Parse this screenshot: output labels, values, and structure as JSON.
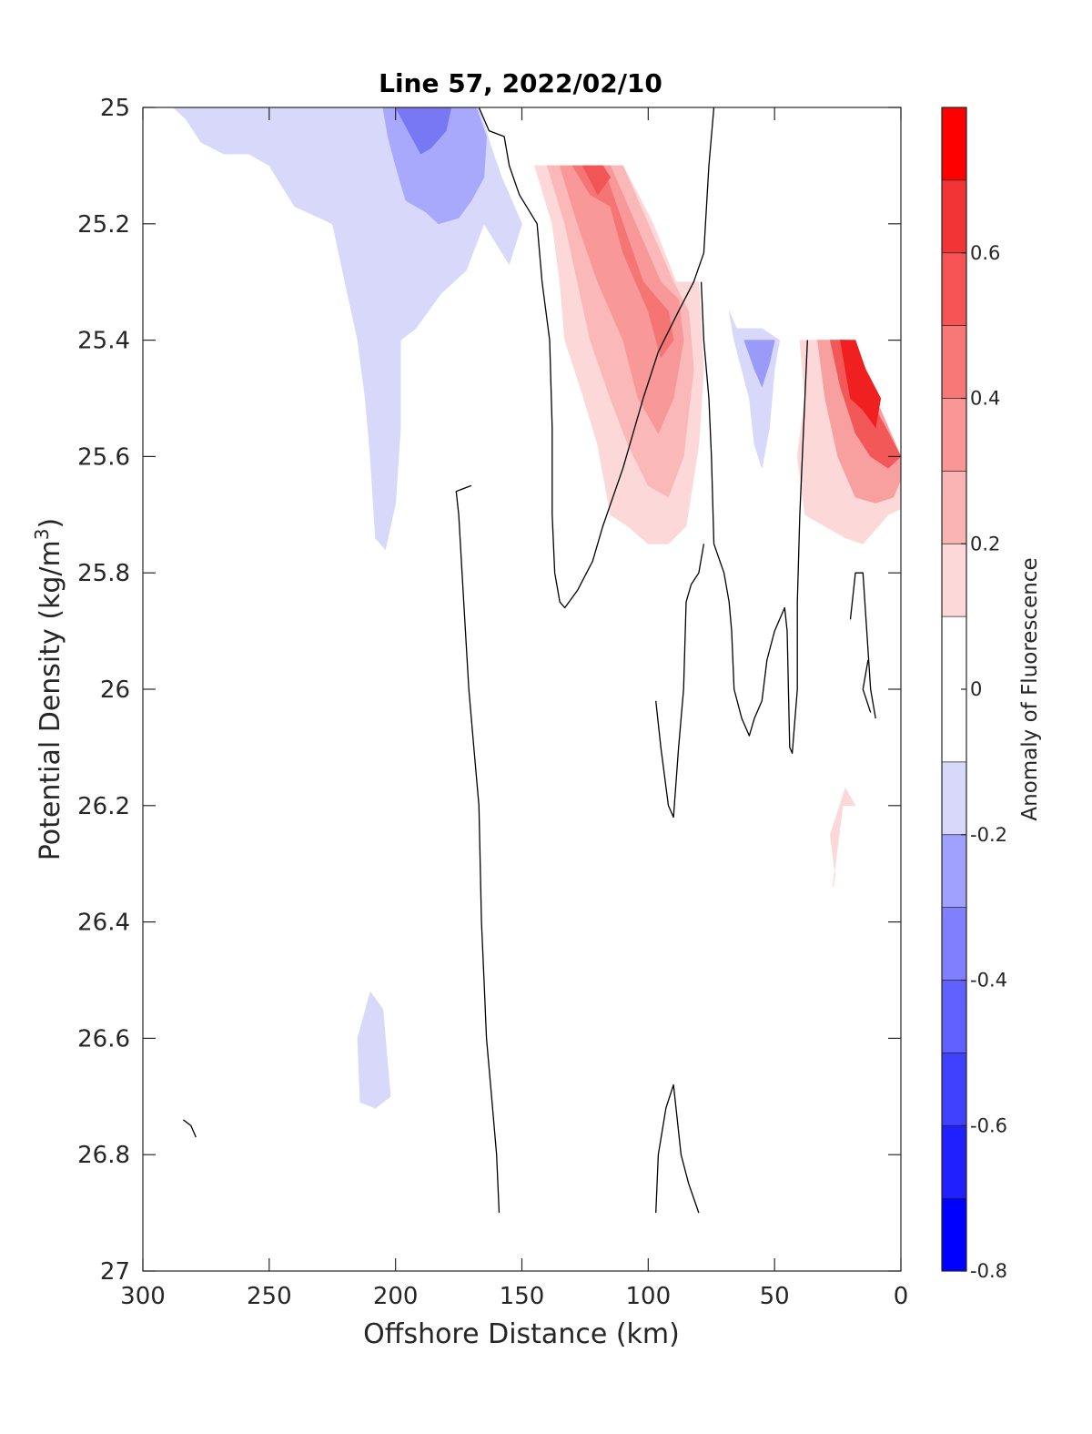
{
  "chart_data": {
    "type": "contour",
    "title": "Line 57, 2022/02/10",
    "xlabel": "Offshore Distance (km)",
    "ylabel": "Potential Density (kg/m",
    "ylabel_sup": "3",
    "ylabel_end": ")",
    "xlim": [
      300,
      0
    ],
    "ylim": [
      25,
      27
    ],
    "x_reversed": true,
    "y_reversed": true,
    "grid": false,
    "x_ticks": [
      300,
      250,
      200,
      150,
      100,
      50,
      0
    ],
    "x_tick_labels": [
      "300",
      "250",
      "200",
      "150",
      "100",
      "50",
      "0"
    ],
    "y_ticks": [
      25,
      25.2,
      25.4,
      25.6,
      25.8,
      26,
      26.2,
      26.4,
      26.6,
      26.8,
      27
    ],
    "y_tick_labels": [
      "25",
      "25.2",
      "25.4",
      "25.6",
      "25.8",
      "26",
      "26.2",
      "26.4",
      "26.6",
      "26.8",
      "27"
    ],
    "colorbar": {
      "label": "Anomaly of Fluorescence",
      "range": [
        -0.8,
        0.8
      ],
      "levels": [
        -0.8,
        -0.7,
        -0.6,
        -0.5,
        -0.4,
        -0.3,
        -0.2,
        -0.1,
        0.1,
        0.2,
        0.3,
        0.4,
        0.5,
        0.6,
        0.7,
        0.8
      ],
      "level_colors": [
        "#0000ff",
        "#2020ff",
        "#4040ff",
        "#6060ff",
        "#8080ff",
        "#a0a0ff",
        "#d8d8fa",
        "#ffffff",
        "#fcd8d8",
        "#fbb4b4",
        "#fa9696",
        "#f87878",
        "#f65454",
        "#f23434",
        "#ff0000"
      ],
      "ticks": [
        -0.8,
        -0.6,
        -0.4,
        -0.2,
        0,
        0.2,
        0.4,
        0.6
      ],
      "tick_labels": [
        "-0.8",
        "-0.6",
        "-0.4",
        "-0.2",
        "0",
        "0.2",
        "0.4",
        "0.6"
      ]
    },
    "blank_region_note": "",
    "fill_regions": [
      {
        "value": -0.15,
        "color": "#d8d8fa",
        "points": [
          [
            288,
            25
          ],
          [
            283,
            25.02
          ],
          [
            277,
            25.06
          ],
          [
            268,
            25.08
          ],
          [
            258,
            25.08
          ],
          [
            250,
            25.1
          ],
          [
            240,
            25.17
          ],
          [
            225,
            25.2
          ],
          [
            220,
            25.3
          ],
          [
            215,
            25.4
          ],
          [
            212,
            25.5
          ],
          [
            210,
            25.6
          ],
          [
            208,
            25.74
          ],
          [
            204,
            25.76
          ],
          [
            200,
            25.68
          ],
          [
            198,
            25.55
          ],
          [
            198,
            25.4
          ],
          [
            192,
            25.38
          ],
          [
            182,
            25.32
          ],
          [
            172,
            25.28
          ],
          [
            165,
            25.2
          ],
          [
            155,
            25.27
          ],
          [
            150,
            25.2
          ],
          [
            158,
            25.12
          ],
          [
            162,
            25.07
          ],
          [
            167,
            25
          ],
          [
            180,
            25
          ]
        ]
      },
      {
        "value": -0.3,
        "color": "#a8a8fc",
        "points": [
          [
            205,
            25
          ],
          [
            203,
            25.05
          ],
          [
            200,
            25.1
          ],
          [
            196,
            25.16
          ],
          [
            188,
            25.18
          ],
          [
            183,
            25.2
          ],
          [
            175,
            25.19
          ],
          [
            170,
            25.16
          ],
          [
            165,
            25.12
          ],
          [
            164,
            25.05
          ],
          [
            168,
            25
          ]
        ]
      },
      {
        "value": -0.45,
        "color": "#7878f4",
        "points": [
          [
            200,
            25
          ],
          [
            195,
            25.04
          ],
          [
            190,
            25.08
          ],
          [
            186,
            25.07
          ],
          [
            180,
            25.04
          ],
          [
            178,
            25
          ]
        ]
      },
      {
        "value": -0.15,
        "color": "#d8d8fa",
        "points": [
          [
            215,
            26.6
          ],
          [
            210,
            26.52
          ],
          [
            205,
            26.55
          ],
          [
            202,
            26.7
          ],
          [
            208,
            26.72
          ],
          [
            214,
            26.71
          ]
        ]
      },
      {
        "value": -0.15,
        "color": "#d8d8fa",
        "points": [
          [
            68,
            25.35
          ],
          [
            66,
            25.4
          ],
          [
            60,
            25.5
          ],
          [
            58,
            25.58
          ],
          [
            55,
            25.62
          ],
          [
            52,
            25.55
          ],
          [
            50,
            25.45
          ],
          [
            48,
            25.4
          ],
          [
            55,
            25.38
          ],
          [
            65,
            25.38
          ]
        ]
      },
      {
        "value": -0.35,
        "color": "#9a9af8",
        "points": [
          [
            62,
            25.4
          ],
          [
            58,
            25.45
          ],
          [
            55,
            25.48
          ],
          [
            52,
            25.44
          ],
          [
            50,
            25.4
          ]
        ]
      },
      {
        "value": 0.15,
        "color": "#fcd8d8",
        "points": [
          [
            145,
            25.1
          ],
          [
            138,
            25.2
          ],
          [
            135,
            25.3
          ],
          [
            133,
            25.4
          ],
          [
            127,
            25.48
          ],
          [
            120,
            25.58
          ],
          [
            115,
            25.7
          ],
          [
            108,
            25.72
          ],
          [
            100,
            25.75
          ],
          [
            92,
            25.75
          ],
          [
            85,
            25.72
          ],
          [
            80,
            25.58
          ],
          [
            78,
            25.45
          ],
          [
            80,
            25.3
          ],
          [
            89,
            25.3
          ],
          [
            98,
            25.2
          ],
          [
            110,
            25.1
          ]
        ]
      },
      {
        "value": 0.25,
        "color": "#fab8b8",
        "points": [
          [
            140,
            25.1
          ],
          [
            133,
            25.2
          ],
          [
            128,
            25.3
          ],
          [
            123,
            25.4
          ],
          [
            115,
            25.5
          ],
          [
            108,
            25.58
          ],
          [
            100,
            25.65
          ],
          [
            92,
            25.67
          ],
          [
            86,
            25.6
          ],
          [
            82,
            25.45
          ],
          [
            84,
            25.35
          ],
          [
            90,
            25.3
          ],
          [
            100,
            25.2
          ],
          [
            110,
            25.1
          ]
        ]
      },
      {
        "value": 0.35,
        "color": "#f89898",
        "points": [
          [
            135,
            25.1
          ],
          [
            128,
            25.2
          ],
          [
            120,
            25.3
          ],
          [
            110,
            25.4
          ],
          [
            104,
            25.5
          ],
          [
            96,
            25.56
          ],
          [
            90,
            25.5
          ],
          [
            86,
            25.4
          ],
          [
            88,
            25.33
          ],
          [
            95,
            25.3
          ],
          [
            105,
            25.2
          ],
          [
            115,
            25.1
          ]
        ]
      },
      {
        "value": 0.45,
        "color": "#f57474",
        "points": [
          [
            130,
            25.1
          ],
          [
            123,
            25.15
          ],
          [
            115,
            25.17
          ],
          [
            110,
            25.25
          ],
          [
            100,
            25.35
          ],
          [
            95,
            25.43
          ],
          [
            90,
            25.4
          ],
          [
            92,
            25.35
          ],
          [
            102,
            25.3
          ],
          [
            110,
            25.2
          ],
          [
            118,
            25.1
          ]
        ]
      },
      {
        "value": 0.55,
        "color": "#f25555",
        "points": [
          [
            126,
            25.1
          ],
          [
            120,
            25.15
          ],
          [
            115,
            25.12
          ],
          [
            118,
            25.1
          ]
        ]
      },
      {
        "value": 0.15,
        "color": "#fcd8d8",
        "points": [
          [
            40,
            25.4
          ],
          [
            38,
            25.5
          ],
          [
            41,
            25.6
          ],
          [
            38,
            25.7
          ],
          [
            30,
            25.72
          ],
          [
            22,
            25.74
          ],
          [
            15,
            25.75
          ],
          [
            5,
            25.7
          ],
          [
            0,
            25.69
          ],
          [
            0,
            25.62
          ],
          [
            5,
            25.55
          ],
          [
            15,
            25.45
          ],
          [
            20,
            25.4
          ]
        ]
      },
      {
        "value": 0.3,
        "color": "#f8a0a0",
        "points": [
          [
            33,
            25.4
          ],
          [
            30,
            25.5
          ],
          [
            25,
            25.6
          ],
          [
            18,
            25.67
          ],
          [
            10,
            25.68
          ],
          [
            3,
            25.67
          ],
          [
            0,
            25.64
          ],
          [
            0,
            25.6
          ],
          [
            8,
            25.52
          ],
          [
            18,
            25.45
          ],
          [
            22,
            25.4
          ]
        ]
      },
      {
        "value": 0.5,
        "color": "#f25858",
        "points": [
          [
            28,
            25.4
          ],
          [
            24,
            25.48
          ],
          [
            18,
            25.56
          ],
          [
            12,
            25.6
          ],
          [
            5,
            25.62
          ],
          [
            0,
            25.6
          ],
          [
            6,
            25.55
          ],
          [
            15,
            25.48
          ],
          [
            22,
            25.4
          ]
        ]
      },
      {
        "value": 0.65,
        "color": "#f02020",
        "points": [
          [
            24,
            25.4
          ],
          [
            22,
            25.45
          ],
          [
            20,
            25.5
          ],
          [
            15,
            25.52
          ],
          [
            10,
            25.55
          ],
          [
            8,
            25.5
          ],
          [
            14,
            25.45
          ],
          [
            18,
            25.4
          ]
        ]
      },
      {
        "value": 0.15,
        "color": "#fcd8d8",
        "points": [
          [
            28,
            26.25
          ],
          [
            26,
            26.32
          ],
          [
            27,
            26.34
          ],
          [
            23,
            26.2
          ],
          [
            18,
            26.2
          ],
          [
            22,
            26.17
          ]
        ]
      }
    ],
    "zero_contours": [
      [
        [
          167,
          25
        ],
        [
          163,
          25.04
        ],
        [
          157,
          25.05
        ],
        [
          155,
          25.1
        ],
        [
          151,
          25.15
        ],
        [
          144,
          25.2
        ],
        [
          142,
          25.3
        ],
        [
          139,
          25.4
        ],
        [
          138,
          25.55
        ],
        [
          138,
          25.7
        ],
        [
          137,
          25.8
        ],
        [
          135,
          25.85
        ],
        [
          133,
          25.86
        ],
        [
          128,
          25.83
        ],
        [
          122,
          25.78
        ],
        [
          118,
          25.72
        ],
        [
          110,
          25.62
        ],
        [
          102,
          25.5
        ],
        [
          96,
          25.42
        ],
        [
          88,
          25.35
        ],
        [
          82,
          25.3
        ],
        [
          78,
          25.25
        ],
        [
          76,
          25.1
        ],
        [
          74,
          25
        ]
      ],
      [
        [
          170,
          25.65
        ],
        [
          176,
          25.66
        ],
        [
          175,
          25.7
        ],
        [
          173,
          25.85
        ],
        [
          171,
          26.0
        ],
        [
          169,
          26.1
        ],
        [
          167,
          26.2
        ],
        [
          166,
          26.4
        ],
        [
          165,
          26.5
        ],
        [
          164,
          26.6
        ],
        [
          162,
          26.7
        ],
        [
          160,
          26.8
        ],
        [
          159,
          26.9
        ]
      ],
      [
        [
          79,
          25.3
        ],
        [
          78,
          25.4
        ],
        [
          76,
          25.5
        ],
        [
          75,
          25.6
        ],
        [
          74,
          25.75
        ],
        [
          70,
          25.8
        ],
        [
          68,
          25.85
        ],
        [
          67,
          25.9
        ],
        [
          66,
          26.0
        ],
        [
          63,
          26.05
        ],
        [
          60,
          26.08
        ],
        [
          58,
          26.05
        ],
        [
          55,
          26.02
        ],
        [
          53,
          25.95
        ],
        [
          50,
          25.9
        ],
        [
          48,
          25.88
        ],
        [
          46,
          25.86
        ],
        [
          45,
          25.9
        ],
        [
          44,
          26.1
        ],
        [
          43,
          26.11
        ],
        [
          41,
          26.0
        ],
        [
          41,
          25.85
        ],
        [
          40,
          25.7
        ],
        [
          39,
          25.6
        ],
        [
          38,
          25.5
        ],
        [
          37,
          25.4
        ]
      ],
      [
        [
          97,
          26.02
        ],
        [
          95,
          26.1
        ],
        [
          92,
          26.2
        ],
        [
          90,
          26.22
        ],
        [
          88,
          26.1
        ],
        [
          86,
          26.0
        ],
        [
          85,
          25.85
        ],
        [
          83,
          25.82
        ],
        [
          80,
          25.8
        ],
        [
          78,
          25.75
        ]
      ],
      [
        [
          20,
          25.88
        ],
        [
          18,
          25.8
        ],
        [
          15,
          25.8
        ],
        [
          12,
          26.0
        ],
        [
          10,
          26.05
        ]
      ],
      [
        [
          13,
          25.95
        ],
        [
          15,
          26.0
        ],
        [
          12,
          26.04
        ]
      ],
      [
        [
          97,
          26.9
        ],
        [
          96,
          26.8
        ],
        [
          93,
          26.72
        ],
        [
          90,
          26.68
        ],
        [
          89,
          26.72
        ],
        [
          87,
          26.8
        ],
        [
          84,
          26.85
        ],
        [
          80,
          26.9
        ]
      ],
      [
        [
          284,
          26.74
        ],
        [
          281,
          26.75
        ],
        [
          279,
          26.77
        ]
      ]
    ]
  }
}
